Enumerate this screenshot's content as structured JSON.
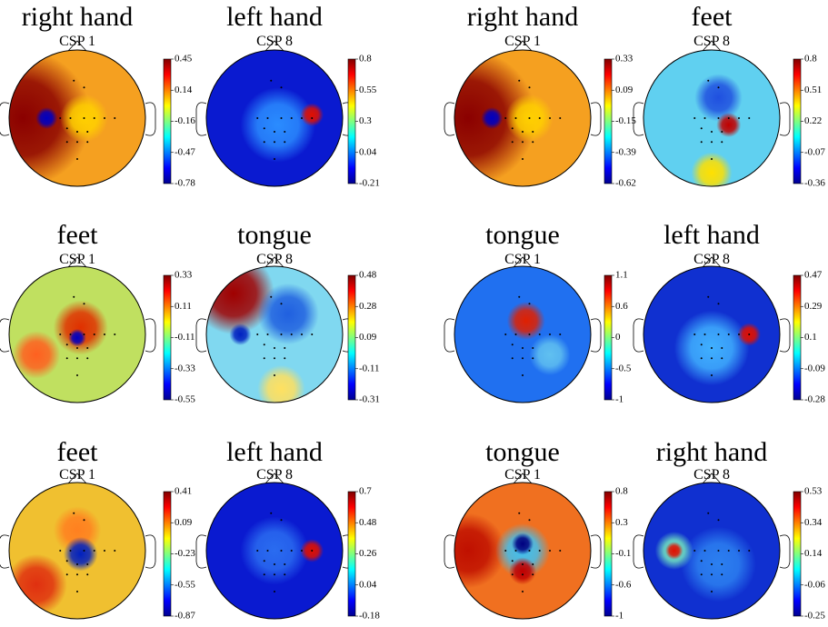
{
  "panels": [
    {
      "title": "right hand",
      "subtitle": "CSP 1",
      "colorbar": [
        0.45,
        0.14,
        -0.16,
        -0.47,
        -0.78
      ]
    },
    {
      "title": "left hand",
      "subtitle": "CSP 8",
      "colorbar": [
        0.8,
        0.55,
        0.3,
        0.04,
        -0.21
      ]
    },
    {
      "title": "right hand",
      "subtitle": "CSP 1",
      "colorbar": [
        0.33,
        0.09,
        -0.15,
        -0.39,
        -0.62
      ]
    },
    {
      "title": "feet",
      "subtitle": "CSP 8",
      "colorbar": [
        0.8,
        0.51,
        0.22,
        -0.07,
        -0.36
      ]
    },
    {
      "title": "feet",
      "subtitle": "CSP 1",
      "colorbar": [
        0.33,
        0.11,
        -0.11,
        -0.33,
        -0.55
      ]
    },
    {
      "title": "tongue",
      "subtitle": "CSP 8",
      "colorbar": [
        0.48,
        0.28,
        0.09,
        -0.11,
        -0.31
      ]
    },
    {
      "title": "tongue",
      "subtitle": "CSP 1",
      "colorbar": [
        1.1,
        0.6,
        0,
        -0.5,
        -1
      ]
    },
    {
      "title": "left hand",
      "subtitle": "CSP 8",
      "colorbar": [
        0.47,
        0.29,
        0.1,
        -0.09,
        -0.28
      ]
    },
    {
      "title": "feet",
      "subtitle": "CSP 1",
      "colorbar": [
        0.41,
        0.09,
        -0.23,
        -0.55,
        -0.87
      ]
    },
    {
      "title": "left hand",
      "subtitle": "CSP 8",
      "colorbar": [
        0.7,
        0.48,
        0.26,
        0.04,
        -0.18
      ]
    },
    {
      "title": "tongue",
      "subtitle": "CSP 1",
      "colorbar": [
        0.8,
        0.3,
        -0.1,
        -0.6,
        -1
      ]
    },
    {
      "title": "right hand",
      "subtitle": "CSP 8",
      "colorbar": [
        0.53,
        0.34,
        0.14,
        -0.06,
        -0.25
      ]
    }
  ]
}
